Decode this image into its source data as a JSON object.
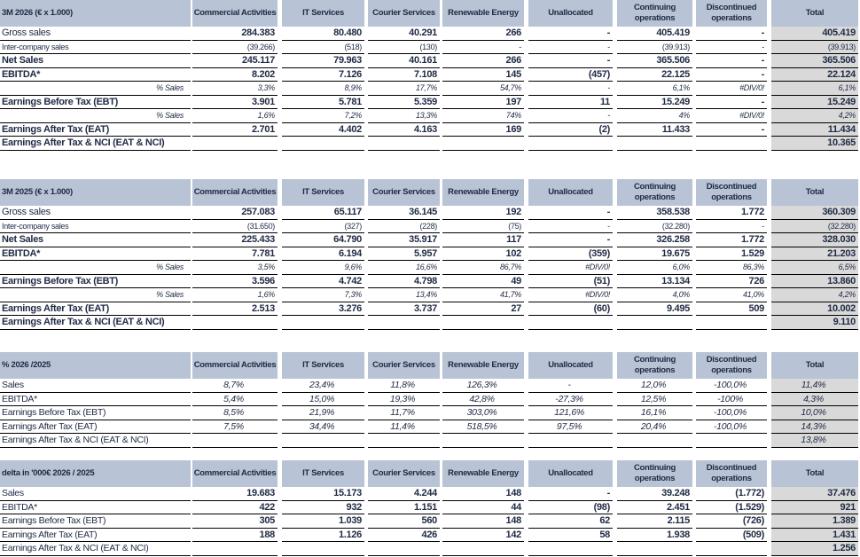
{
  "tables": [
    {
      "title": "3M 2026 (€ x 1.000)",
      "columns": [
        "Commercial Activities",
        "IT Services",
        "Courier Services",
        "Renewable Energy",
        "Unallocated",
        "Continuing operations",
        "Discontinued operations",
        "Total"
      ],
      "rows": [
        {
          "label": "Gross sales",
          "style": "main",
          "values": [
            "284.383",
            "80.480",
            "40.291",
            "266",
            "-",
            "405.419",
            "-"
          ],
          "total": "405.419"
        },
        {
          "label": "Inter-company sales",
          "style": "small",
          "values": [
            "(39.266)",
            "(518)",
            "(130)",
            "-",
            "-",
            "(39.913)",
            "-"
          ],
          "total": "(39.913)"
        },
        {
          "label": "Net Sales",
          "style": "bold",
          "values": [
            "245.117",
            "79.963",
            "40.161",
            "266",
            "-",
            "365.506",
            "-"
          ],
          "total": "365.506"
        },
        {
          "label": "EBITDA*",
          "style": "bold",
          "values": [
            "8.202",
            "7.126",
            "7.108",
            "145",
            "(457)",
            "22.125",
            "-"
          ],
          "total": "22.124"
        },
        {
          "label": "% Sales",
          "style": "pct",
          "values": [
            "3,3%",
            "8,9%",
            "17,7%",
            "54,7%",
            "-",
            "6,1%",
            "#DIV/0!"
          ],
          "total": "6,1%"
        },
        {
          "label": "Earnings Before Tax (EBT)",
          "style": "bold",
          "values": [
            "3.901",
            "5.781",
            "5.359",
            "197",
            "11",
            "15.249",
            "-"
          ],
          "total": "15.249"
        },
        {
          "label": "% Sales",
          "style": "pct",
          "values": [
            "1,6%",
            "7,2%",
            "13,3%",
            "74%",
            "-",
            "4%",
            "#DIV/0!"
          ],
          "total": "4,2%"
        },
        {
          "label": "Earnings After Tax (EAT)",
          "style": "bold",
          "values": [
            "2.701",
            "4.402",
            "4.163",
            "169",
            "(2)",
            "11.433",
            "-"
          ],
          "total": "11.434"
        },
        {
          "label": "Earnings After Tax & NCI (EAT & NCI)",
          "style": "bold",
          "total": "10.365"
        }
      ]
    },
    {
      "title": "3M 2025 (€ x 1.000)",
      "columns": [
        "Commercial Activities",
        "IT Services",
        "Courier Services",
        "Renewable Energy",
        "Unallocated",
        "Continuing operations",
        "Discontinued operations",
        "Total"
      ],
      "rows": [
        {
          "label": "Gross sales",
          "style": "main",
          "values": [
            "257.083",
            "65.117",
            "36.145",
            "192",
            "-",
            "358.538",
            "1.772"
          ],
          "total": "360.309"
        },
        {
          "label": "Inter-company sales",
          "style": "small",
          "values": [
            "(31.650)",
            "(327)",
            "(228)",
            "(75)",
            "-",
            "(32.280)",
            "-"
          ],
          "total": "(32.280)"
        },
        {
          "label": "Net Sales",
          "style": "bold",
          "values": [
            "225.433",
            "64.790",
            "35.917",
            "117",
            "-",
            "326.258",
            "1.772"
          ],
          "total": "328.030"
        },
        {
          "label": "EBITDA*",
          "style": "bold",
          "values": [
            "7.781",
            "6.194",
            "5.957",
            "102",
            "(359)",
            "19.675",
            "1.529"
          ],
          "total": "21.203"
        },
        {
          "label": "% Sales",
          "style": "pct",
          "values": [
            "3,5%",
            "9,6%",
            "16,6%",
            "86,7%",
            "#DIV/0!",
            "6,0%",
            "86,3%"
          ],
          "total": "6,5%"
        },
        {
          "label": "Earnings Before Tax (EBT)",
          "style": "bold",
          "values": [
            "3.596",
            "4.742",
            "4.798",
            "49",
            "(51)",
            "13.134",
            "726"
          ],
          "total": "13.860"
        },
        {
          "label": "% Sales",
          "style": "pct",
          "values": [
            "1,6%",
            "7,3%",
            "13,4%",
            "41,7%",
            "#DIV/0!",
            "4,0%",
            "41,0%"
          ],
          "total": "4,2%"
        },
        {
          "label": "Earnings After Tax (EAT)",
          "style": "bold",
          "values": [
            "2.513",
            "3.276",
            "3.737",
            "27",
            "(60)",
            "9.495",
            "509"
          ],
          "total": "10.002"
        },
        {
          "label": "Earnings After Tax & NCI (EAT & NCI)",
          "style": "bold",
          "total": "9.110"
        }
      ]
    },
    {
      "title": "% 2026 /2025",
      "columns": [
        "Commercial Activities",
        "IT Services",
        "Courier Services",
        "Renewable Energy",
        "Unallocated",
        "Continuing operations",
        "Discontinued operations",
        "Total"
      ],
      "rows": [
        {
          "label": "Sales",
          "style": "ratio",
          "values": [
            "8,7%",
            "23,4%",
            "11,8%",
            "126,3%",
            "-",
            "12,0%",
            "-100,0%"
          ],
          "total": "11,4%"
        },
        {
          "label": "EBITDA*",
          "style": "ratio",
          "values": [
            "5,4%",
            "15,0%",
            "19,3%",
            "42,8%",
            "-27,3%",
            "12,5%",
            "-100%"
          ],
          "total": "4,3%"
        },
        {
          "label": "Earnings Before Tax (EBT)",
          "style": "ratio",
          "values": [
            "8,5%",
            "21,9%",
            "11,7%",
            "303,0%",
            "121,6%",
            "16,1%",
            "-100,0%"
          ],
          "total": "10,0%"
        },
        {
          "label": "Earnings After Tax (EAT)",
          "style": "ratio",
          "values": [
            "7,5%",
            "34,4%",
            "11,4%",
            "518,5%",
            "97,5%",
            "20,4%",
            "-100,0%"
          ],
          "total": "14,3%"
        },
        {
          "label": "Earnings After Tax & NCI (EAT & NCI)",
          "style": "ratio",
          "total": "13,8%"
        }
      ]
    },
    {
      "title": "delta in '000€ 2026 / 2025",
      "columns": [
        "Commercial Activities",
        "IT Services",
        "Courier Services",
        "Renewable Energy",
        "Unallocated",
        "Continuing operations",
        "Discontinued operations",
        "Total"
      ],
      "rows": [
        {
          "label": "Sales",
          "style": "delta",
          "values": [
            "19.683",
            "15.173",
            "4.244",
            "148",
            "-",
            "39.248",
            "(1.772)"
          ],
          "total": "37.476"
        },
        {
          "label": "EBITDA*",
          "style": "delta",
          "values": [
            "422",
            "932",
            "1.151",
            "44",
            "(98)",
            "2.451",
            "(1.529)"
          ],
          "total": "921"
        },
        {
          "label": "Earnings Before Tax (EBT)",
          "style": "delta",
          "values": [
            "305",
            "1.039",
            "560",
            "148",
            "62",
            "2.115",
            "(726)"
          ],
          "total": "1.389"
        },
        {
          "label": "Earnings After Tax (EAT)",
          "style": "delta",
          "values": [
            "188",
            "1.126",
            "426",
            "142",
            "58",
            "1.938",
            "(509)"
          ],
          "total": "1.431"
        },
        {
          "label": "Earnings After Tax & NCI (EAT & NCI)",
          "style": "delta",
          "total": "1.256"
        }
      ]
    }
  ]
}
